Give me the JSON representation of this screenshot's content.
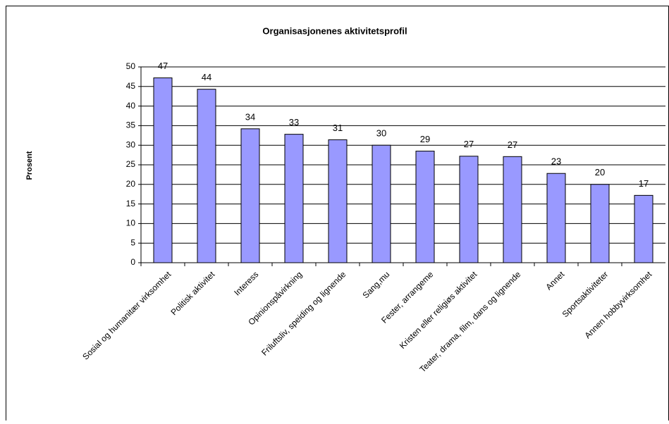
{
  "chart_data": {
    "type": "bar",
    "title": "Organisasjonenes aktivitetsprofil",
    "y_label": "Prosent",
    "categories": [
      "Sosial og humanitær virksomhet",
      "Politisk aktivitet",
      "Interess",
      "Opinionspåvirkning",
      "Friluftsliv, speiding og lignende",
      "Sang,mu",
      "Fester, arrangeme",
      "Kristen eller religiøs aktivitet",
      "Teater, drama, film, dans og lignende",
      "Annet",
      "Sportsaktiviteter",
      "Annen hobbyvirksomhet"
    ],
    "values": [
      47.2,
      44.3,
      34.2,
      32.8,
      31.4,
      30.0,
      28.5,
      27.2,
      27.1,
      22.8,
      20.0,
      17.2
    ],
    "value_labels": [
      "47",
      "44",
      "34",
      "33",
      "31",
      "30",
      "29",
      "27",
      "27",
      "23",
      "20",
      "17"
    ],
    "color": "#9999ff",
    "ylim": [
      0,
      50
    ],
    "yticks": [
      0,
      5,
      10,
      15,
      20,
      25,
      30,
      35,
      40,
      45,
      50
    ],
    "grid": true
  }
}
